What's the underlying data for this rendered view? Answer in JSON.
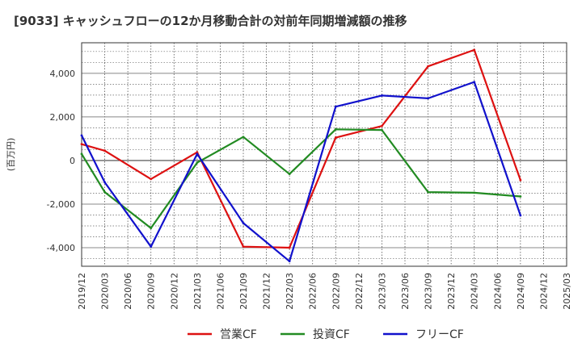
{
  "chart_data": {
    "type": "line",
    "title": "[9033]  キャッシュフローの12か月移動合計の対前年同期増減額の推移",
    "ylabel": "(百万円)",
    "xlabel": "",
    "ylim": [
      -4850,
      5400
    ],
    "yticks": [
      4000,
      2000,
      0,
      -2000,
      -4000
    ],
    "ytick_labels": [
      "4,000",
      "2,000",
      "0",
      "-2,000",
      "-4,000"
    ],
    "x_ticks": [
      "2019/12",
      "2020/03",
      "2020/06",
      "2020/09",
      "2020/12",
      "2021/03",
      "2021/06",
      "2021/09",
      "2021/12",
      "2022/03",
      "2022/06",
      "2022/09",
      "2022/12",
      "2023/03",
      "2023/06",
      "2023/09",
      "2023/12",
      "2024/03",
      "2024/06",
      "2024/09",
      "2024/12",
      "2025/03"
    ],
    "grid": true,
    "legend_position": "bottom",
    "series": [
      {
        "name": "営業CF",
        "color": "#dd1111",
        "points": [
          [
            "2019/12",
            750
          ],
          [
            "2020/03",
            450
          ],
          [
            "2020/09",
            -850
          ],
          [
            "2021/03",
            380
          ],
          [
            "2021/09",
            -3950
          ],
          [
            "2022/03",
            -4000
          ],
          [
            "2022/09",
            1050
          ],
          [
            "2023/03",
            1580
          ],
          [
            "2023/09",
            4320
          ],
          [
            "2024/03",
            5070
          ],
          [
            "2024/09",
            -900
          ]
        ]
      },
      {
        "name": "投資CF",
        "color": "#228b22",
        "points": [
          [
            "2019/12",
            300
          ],
          [
            "2020/03",
            -1450
          ],
          [
            "2020/09",
            -3100
          ],
          [
            "2021/03",
            -100
          ],
          [
            "2021/09",
            1080
          ],
          [
            "2022/03",
            -620
          ],
          [
            "2022/09",
            1430
          ],
          [
            "2023/03",
            1400
          ],
          [
            "2023/09",
            -1450
          ],
          [
            "2024/03",
            -1480
          ],
          [
            "2024/09",
            -1650
          ]
        ]
      },
      {
        "name": "フリーCF",
        "color": "#1111cc",
        "points": [
          [
            "2019/12",
            1150
          ],
          [
            "2020/03",
            -1000
          ],
          [
            "2020/09",
            -3950
          ],
          [
            "2021/03",
            300
          ],
          [
            "2021/09",
            -2870
          ],
          [
            "2022/03",
            -4620
          ],
          [
            "2022/09",
            2470
          ],
          [
            "2023/03",
            2980
          ],
          [
            "2023/09",
            2850
          ],
          [
            "2024/03",
            3600
          ],
          [
            "2024/09",
            -2520
          ]
        ]
      }
    ]
  }
}
